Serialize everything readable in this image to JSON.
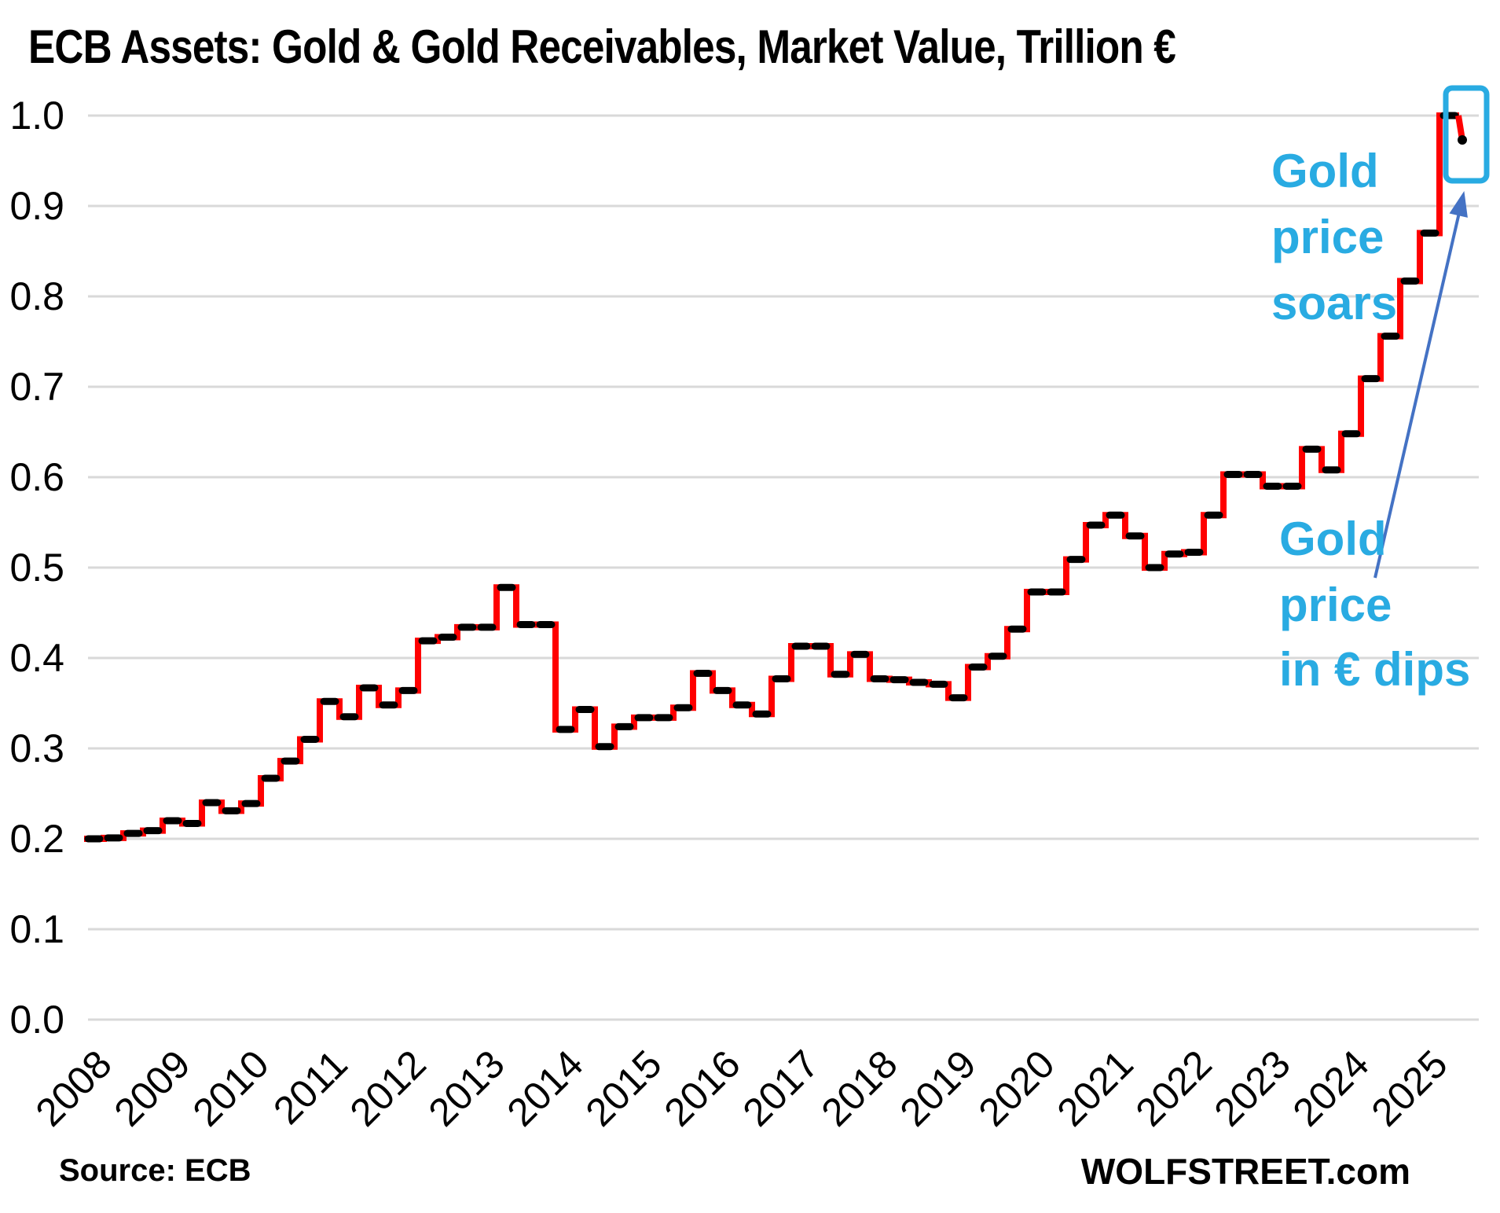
{
  "title": "ECB Assets: Gold & Gold Receivables, Market Value, Trillion €",
  "source_label": "Source: ECB",
  "brand": "WOLFSTREET.com",
  "annotations": {
    "gold_soars": {
      "lines": [
        "Gold",
        "price",
        "soars"
      ]
    },
    "gold_dips": {
      "lines": [
        "Gold",
        "price",
        "in € dips"
      ]
    }
  },
  "colors": {
    "line_red": "#FF0000",
    "marker_black": "#000000",
    "grid_gray": "#D9D9D9",
    "annotation_blue": "#29ABE2",
    "arrow_blue": "#4472C4",
    "background": "#FFFFFF"
  },
  "chart_data": {
    "type": "line",
    "style": "step",
    "frequency": "quarterly",
    "title": "ECB Assets: Gold & Gold Receivables, Market Value, Trillion €",
    "xlabel": "",
    "ylabel": "Trillion €",
    "x_start": "2008-Q1",
    "x_end": "2025-Q2",
    "year_labels": [
      "2008",
      "2009",
      "2010",
      "2011",
      "2012",
      "2013",
      "2014",
      "2015",
      "2016",
      "2017",
      "2018",
      "2019",
      "2020",
      "2021",
      "2022",
      "2023",
      "2024",
      "2025"
    ],
    "ylim": [
      0.0,
      1.0
    ],
    "ytick_labels": [
      "0.0",
      "0.1",
      "0.2",
      "0.3",
      "0.4",
      "0.5",
      "0.6",
      "0.7",
      "0.8",
      "0.9",
      "1.0"
    ],
    "grid": "horizontal",
    "legend": "none",
    "series": [
      {
        "name": "Gold & gold receivables, market value, trillion €",
        "values": [
          0.2,
          0.201,
          0.206,
          0.209,
          0.22,
          0.217,
          0.24,
          0.231,
          0.239,
          0.267,
          0.286,
          0.31,
          0.352,
          0.335,
          0.367,
          0.348,
          0.364,
          0.419,
          0.423,
          0.434,
          0.434,
          0.478,
          0.437,
          0.437,
          0.321,
          0.343,
          0.302,
          0.324,
          0.334,
          0.334,
          0.345,
          0.383,
          0.364,
          0.348,
          0.338,
          0.377,
          0.413,
          0.413,
          0.382,
          0.404,
          0.377,
          0.376,
          0.373,
          0.371,
          0.356,
          0.39,
          0.402,
          0.432,
          0.473,
          0.473,
          0.509,
          0.547,
          0.558,
          0.535,
          0.5,
          0.515,
          0.517,
          0.558,
          0.603,
          0.603,
          0.59,
          0.59,
          0.631,
          0.608,
          0.648,
          0.709,
          0.756,
          0.817,
          0.87,
          1.0
        ]
      }
    ],
    "latest_point": {
      "value": 0.973,
      "note": "latest reading after quarterly peak, highlighted by blue box"
    },
    "peak_value": 1.0
  }
}
